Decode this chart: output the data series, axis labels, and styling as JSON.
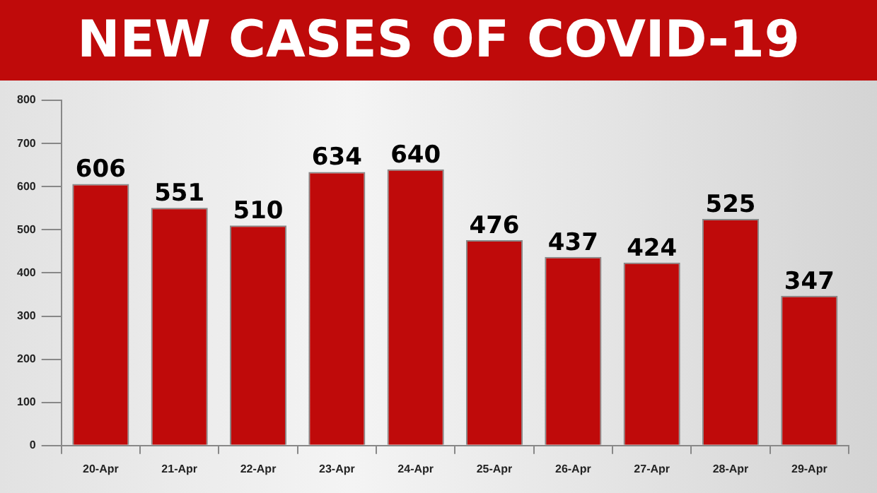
{
  "chart_data": {
    "type": "bar",
    "title": "NEW CASES OF COVID-19",
    "categories": [
      "20-Apr",
      "21-Apr",
      "22-Apr",
      "23-Apr",
      "24-Apr",
      "25-Apr",
      "26-Apr",
      "27-Apr",
      "28-Apr",
      "29-Apr"
    ],
    "values": [
      606,
      551,
      510,
      634,
      640,
      476,
      437,
      424,
      525,
      347
    ],
    "color": "#bf0a0a",
    "ylim": [
      0,
      800
    ],
    "yticks": [
      0,
      100,
      200,
      300,
      400,
      500,
      600,
      700,
      800
    ],
    "grid": false,
    "legend": false,
    "data_labels": true
  }
}
